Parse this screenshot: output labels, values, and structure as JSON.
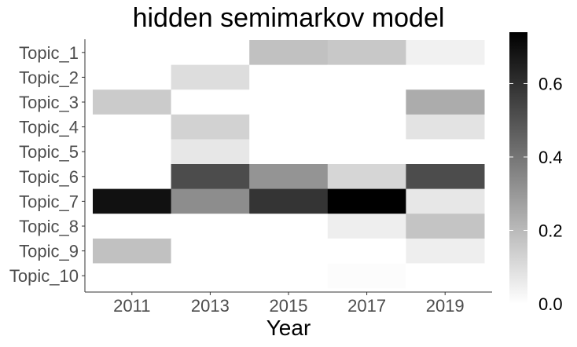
{
  "chart_data": {
    "type": "heatmap",
    "title": "hidden semimarkov model",
    "xlabel": "Year",
    "ylabel": "",
    "x": [
      2011,
      2013,
      2015,
      2017,
      2019
    ],
    "x_ticks": [
      "2011",
      "2013",
      "2015",
      "2017",
      "2019"
    ],
    "y": [
      "Topic_1",
      "Topic_2",
      "Topic_3",
      "Topic_4",
      "Topic_5",
      "Topic_6",
      "Topic_7",
      "Topic_8",
      "Topic_9",
      "Topic_10"
    ],
    "values": [
      [
        0.0,
        0.0,
        0.18,
        0.16,
        0.04
      ],
      [
        0.0,
        0.1,
        0.0,
        0.0,
        0.0
      ],
      [
        0.15,
        0.0,
        0.0,
        0.0,
        0.24
      ],
      [
        0.0,
        0.13,
        0.0,
        0.0,
        0.08
      ],
      [
        0.0,
        0.07,
        0.0,
        0.0,
        0.0
      ],
      [
        0.0,
        0.52,
        0.31,
        0.12,
        0.52
      ],
      [
        0.69,
        0.33,
        0.59,
        0.74,
        0.07
      ],
      [
        0.0,
        0.0,
        0.0,
        0.05,
        0.17
      ],
      [
        0.18,
        0.0,
        0.0,
        0.0,
        0.05
      ],
      [
        0.0,
        0.0,
        0.0,
        0.01,
        0.0
      ]
    ],
    "color_scale": {
      "low": "#ffffff",
      "high": "#000000",
      "min": 0.0,
      "max": 0.74,
      "ticks": [
        0.0,
        0.2,
        0.4,
        0.6
      ],
      "tick_labels": [
        "0.0",
        "0.2",
        "0.4",
        "0.6"
      ],
      "legend_position": "right"
    },
    "grid": false
  }
}
